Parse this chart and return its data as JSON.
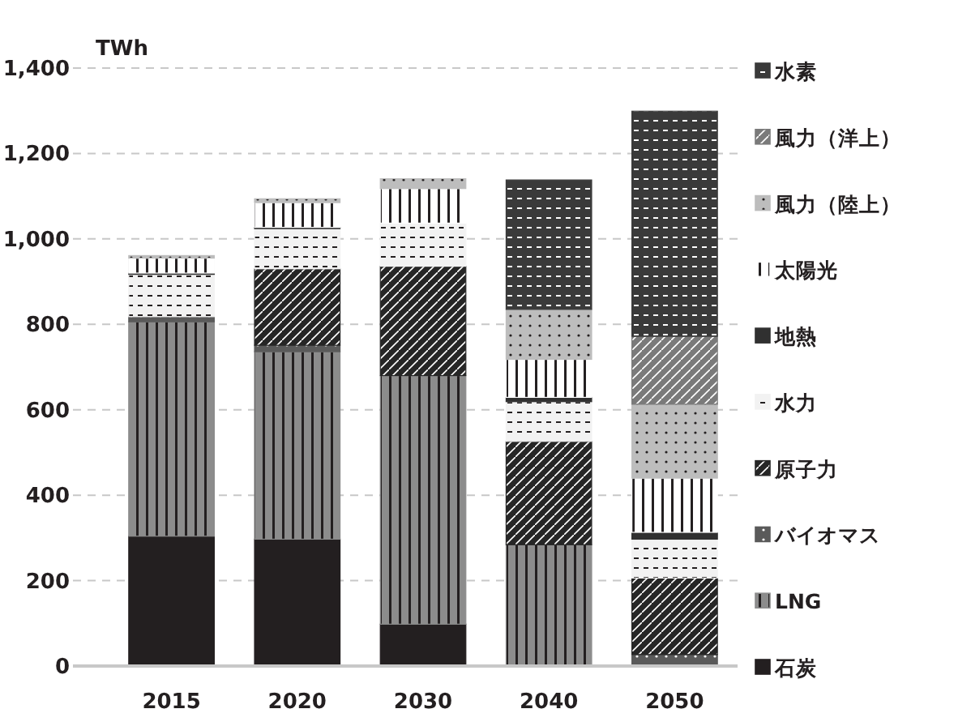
{
  "chart_data": {
    "type": "bar",
    "stacked": true,
    "ylabel": "TWh",
    "categories": [
      "2015",
      "2020",
      "2030",
      "2040",
      "2050"
    ],
    "series": [
      {
        "name": "石炭",
        "color": "#231f20",
        "values": [
          304,
          297,
          98,
          0,
          0
        ]
      },
      {
        "name": "LNG",
        "color": "#8c8c8c",
        "values": [
          502,
          439,
          582,
          284,
          0
        ]
      },
      {
        "name": "バイオマス",
        "color": "#5a5a5a",
        "values": [
          12,
          15,
          0,
          0,
          27
        ]
      },
      {
        "name": "原子力",
        "color": "#262626",
        "values": [
          0,
          179,
          256,
          242,
          179
        ]
      },
      {
        "name": "水力",
        "color": "#f2f2f2",
        "values": [
          99,
          94,
          101,
          93,
          91
        ]
      },
      {
        "name": "地熱",
        "color": "#303030",
        "values": [
          3,
          3,
          0,
          10,
          16
        ]
      },
      {
        "name": "太陽光",
        "color": "#ffffff",
        "values": [
          35,
          58,
          81,
          89,
          127
        ]
      },
      {
        "name": "風力（陸上）",
        "color": "#bdbdbd",
        "values": [
          6,
          9,
          23,
          117,
          173
        ]
      },
      {
        "name": "風力（洋上）",
        "color": "#7a7a7a",
        "values": [
          0,
          0,
          0,
          0,
          159
        ]
      },
      {
        "name": "水素",
        "color": "#3a3a3a",
        "values": [
          0,
          0,
          0,
          303,
          527
        ]
      }
    ],
    "ylim": [
      0,
      1400
    ],
    "yticks": [
      {
        "value": 0,
        "label": "0"
      },
      {
        "value": 200,
        "label": "200"
      },
      {
        "value": 400,
        "label": "400"
      },
      {
        "value": 600,
        "label": "600"
      },
      {
        "value": 800,
        "label": "800"
      },
      {
        "value": 1000,
        "label": "1,000"
      },
      {
        "value": 1200,
        "label": "1,200"
      },
      {
        "value": 1400,
        "label": "1,400"
      }
    ],
    "grid": "y",
    "legend": "right"
  }
}
